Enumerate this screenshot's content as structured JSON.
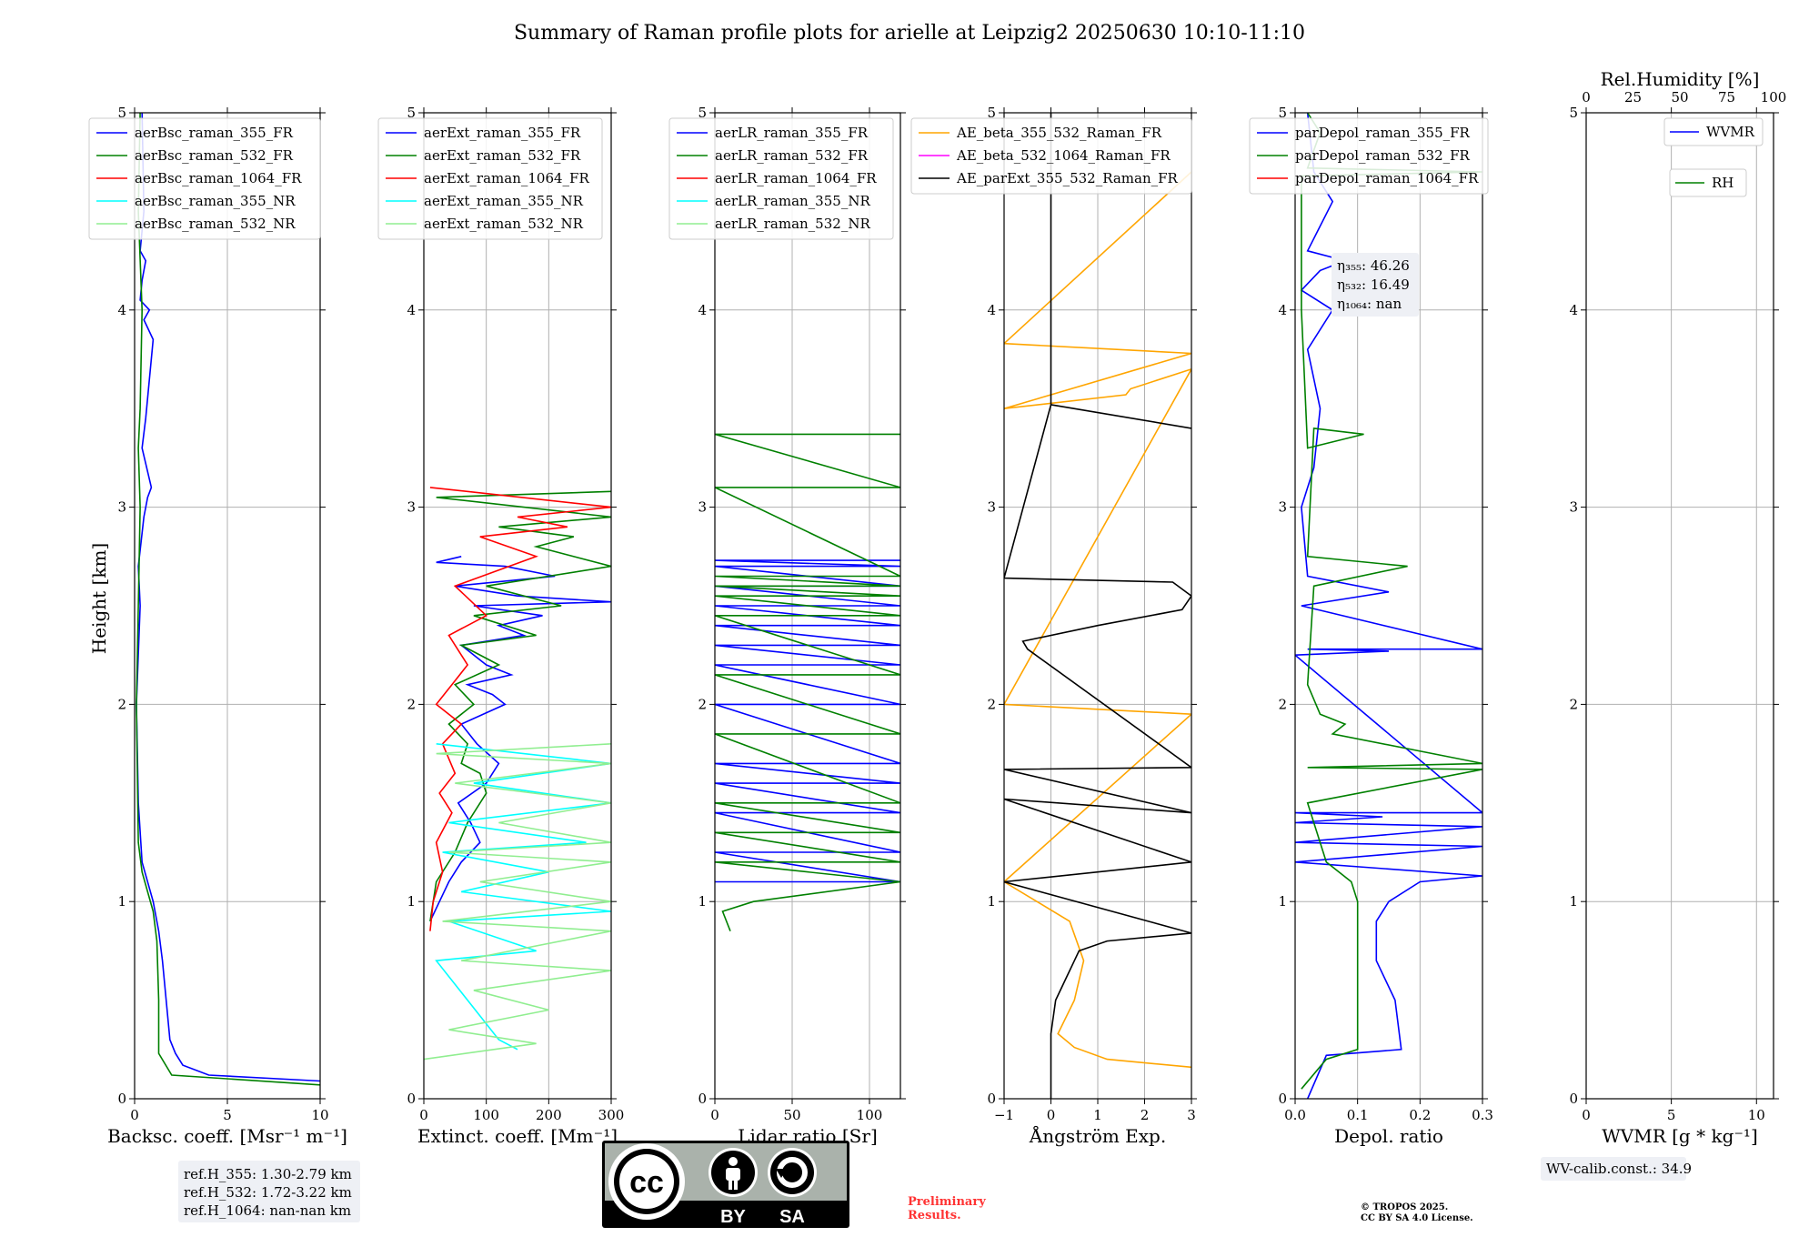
{
  "title": "Summary of Raman profile plots for arielle at Leipzig2 20250630 10:10-11:10",
  "chart_data": [
    {
      "type": "line",
      "xlabel": "Backsc. coeff. [Msr⁻¹ m⁻¹]",
      "ylabel": "Height [km]",
      "xlim": [
        0,
        10
      ],
      "xticks": [
        0,
        5,
        10
      ],
      "ylim": [
        0,
        5
      ],
      "yticks": [
        0,
        1,
        2,
        3,
        4,
        5
      ],
      "grid": true,
      "legend": "top-left",
      "series": [
        {
          "name": "aerBsc_raman_355_FR",
          "color": "#0000ff",
          "x": [
            10.0,
            4.0,
            2.6,
            2.2,
            1.9,
            1.7,
            1.5,
            1.3,
            1.0,
            0.7,
            0.4,
            0.2,
            0.1,
            0.3,
            0.2,
            0.5,
            0.7,
            0.9,
            0.4,
            0.6,
            1.0,
            0.5,
            0.8,
            0.3,
            0.4,
            0.6,
            0.3,
            0.5,
            0.4
          ],
          "y": [
            0.09,
            0.12,
            0.17,
            0.23,
            0.3,
            0.5,
            0.7,
            0.85,
            1.0,
            1.1,
            1.2,
            1.5,
            2.0,
            2.5,
            2.7,
            2.95,
            3.05,
            3.1,
            3.3,
            3.45,
            3.85,
            3.95,
            4.0,
            4.05,
            4.15,
            4.25,
            4.3,
            4.5,
            5.0
          ]
        },
        {
          "name": "aerBsc_raman_532_FR",
          "color": "#008000",
          "x": [
            10.0,
            2.0,
            1.3,
            1.3,
            1.2,
            1.0,
            0.7,
            0.4,
            0.2,
            0.1,
            0.2,
            0.3,
            0.2,
            0.3,
            0.4,
            0.2,
            0.3
          ],
          "y": [
            0.07,
            0.12,
            0.23,
            0.5,
            0.8,
            0.95,
            1.05,
            1.15,
            1.3,
            2.0,
            2.5,
            3.0,
            3.3,
            3.5,
            4.0,
            4.5,
            5.0
          ]
        },
        {
          "name": "aerBsc_raman_1064_FR",
          "color": "#ff0000",
          "x": [],
          "y": []
        },
        {
          "name": "aerBsc_raman_355_NR",
          "color": "#00ffff",
          "x": [],
          "y": []
        },
        {
          "name": "aerBsc_raman_532_NR",
          "color": "#90ee90",
          "x": [],
          "y": []
        }
      ]
    },
    {
      "type": "line",
      "xlabel": "Extinct. coeff. [Mm⁻¹]",
      "xlim": [
        0,
        300
      ],
      "xticks": [
        0,
        100,
        200,
        300
      ],
      "ylim": [
        0,
        5
      ],
      "yticks": [
        0,
        1,
        2,
        3,
        4,
        5
      ],
      "grid": true,
      "legend": "top-left",
      "series": [
        {
          "name": "aerExt_raman_355_FR",
          "color": "#0000ff",
          "x": [
            10,
            25,
            40,
            60,
            90,
            75,
            55,
            100,
            120,
            85,
            60,
            130,
            110,
            70,
            140,
            100,
            60,
            160,
            120,
            190,
            80,
            300,
            150,
            50,
            210,
            130,
            20,
            60
          ],
          "y": [
            0.9,
            1.0,
            1.1,
            1.2,
            1.3,
            1.4,
            1.5,
            1.6,
            1.7,
            1.8,
            1.9,
            2.0,
            2.05,
            2.1,
            2.15,
            2.2,
            2.3,
            2.35,
            2.4,
            2.45,
            2.5,
            2.52,
            2.55,
            2.6,
            2.65,
            2.7,
            2.72,
            2.75
          ]
        },
        {
          "name": "aerExt_raman_532_FR",
          "color": "#008000",
          "x": [
            10,
            20,
            50,
            70,
            100,
            90,
            60,
            70,
            40,
            80,
            50,
            120,
            60,
            180,
            80,
            220,
            100,
            300,
            180,
            240,
            120,
            300,
            20,
            300
          ],
          "y": [
            0.9,
            1.1,
            1.25,
            1.4,
            1.55,
            1.65,
            1.7,
            1.8,
            1.9,
            2.0,
            2.1,
            2.2,
            2.3,
            2.35,
            2.45,
            2.5,
            2.6,
            2.7,
            2.8,
            2.85,
            2.9,
            2.95,
            3.05,
            3.08
          ]
        },
        {
          "name": "aerExt_raman_1064_FR",
          "color": "#ff0000",
          "x": [
            10,
            15,
            30,
            20,
            45,
            25,
            50,
            30,
            60,
            20,
            45,
            70,
            40,
            100,
            50,
            180,
            90,
            230,
            150,
            300,
            10
          ],
          "y": [
            0.85,
            1.0,
            1.15,
            1.3,
            1.45,
            1.55,
            1.65,
            1.8,
            1.9,
            2.0,
            2.1,
            2.2,
            2.35,
            2.45,
            2.6,
            2.75,
            2.85,
            2.9,
            2.95,
            3.0,
            3.1
          ]
        },
        {
          "name": "aerExt_raman_355_NR",
          "color": "#00ffff",
          "x": [
            150,
            120,
            70,
            20,
            180,
            40,
            300,
            60,
            200,
            30,
            260,
            40,
            300,
            80,
            300,
            20
          ],
          "y": [
            0.25,
            0.3,
            0.5,
            0.7,
            0.75,
            0.9,
            0.95,
            1.05,
            1.15,
            1.25,
            1.3,
            1.4,
            1.5,
            1.6,
            1.7,
            1.8
          ]
        },
        {
          "name": "aerExt_raman_532_NR",
          "color": "#90ee90",
          "x": [
            0,
            180,
            40,
            200,
            80,
            300,
            60,
            300,
            30,
            300,
            90,
            300,
            40,
            300,
            120,
            300,
            50,
            300,
            20,
            300
          ],
          "y": [
            0.2,
            0.28,
            0.35,
            0.45,
            0.55,
            0.65,
            0.7,
            0.85,
            0.9,
            1.0,
            1.1,
            1.2,
            1.25,
            1.3,
            1.4,
            1.5,
            1.6,
            1.7,
            1.75,
            1.8
          ]
        }
      ]
    },
    {
      "type": "line",
      "xlabel": "Lidar ratio [Sr]",
      "xlim": [
        0,
        120
      ],
      "xticks": [
        0,
        50,
        100
      ],
      "ylim": [
        0,
        5
      ],
      "yticks": [
        0,
        1,
        2,
        3,
        4,
        5
      ],
      "grid": true,
      "legend": "top-left",
      "series": [
        {
          "name": "aerLR_raman_355_FR",
          "color": "#0000ff",
          "x": [
            0,
            120,
            0,
            120,
            0,
            120,
            0,
            120,
            0,
            120,
            0,
            120,
            0,
            120,
            0,
            120,
            0,
            120,
            0,
            120,
            0,
            120,
            0,
            120,
            0,
            120
          ],
          "y": [
            1.1,
            1.1,
            1.25,
            1.25,
            1.45,
            1.45,
            1.6,
            1.6,
            1.7,
            1.7,
            2.0,
            2.0,
            2.2,
            2.2,
            2.3,
            2.3,
            2.4,
            2.4,
            2.5,
            2.5,
            2.6,
            2.6,
            2.7,
            2.7,
            2.73,
            2.73
          ]
        },
        {
          "name": "aerLR_raman_532_FR",
          "color": "#008000",
          "x": [
            10,
            5,
            25,
            120,
            0,
            120,
            0,
            120,
            0,
            120,
            0,
            120,
            0,
            120,
            0,
            120,
            0,
            120,
            0,
            120,
            0,
            120,
            0,
            120,
            0,
            120
          ],
          "y": [
            0.85,
            0.95,
            1.0,
            1.1,
            1.2,
            1.2,
            1.35,
            1.35,
            1.5,
            1.5,
            1.85,
            1.85,
            2.15,
            2.15,
            2.45,
            2.45,
            2.55,
            2.55,
            2.6,
            2.6,
            2.65,
            2.65,
            3.1,
            3.1,
            3.37,
            3.37
          ]
        },
        {
          "name": "aerLR_raman_1064_FR",
          "color": "#ff0000",
          "x": [],
          "y": []
        },
        {
          "name": "aerLR_raman_355_NR",
          "color": "#00ffff",
          "x": [],
          "y": []
        },
        {
          "name": "aerLR_raman_532_NR",
          "color": "#90ee90",
          "x": [],
          "y": []
        }
      ]
    },
    {
      "type": "line",
      "xlabel": "Ångström Exp.",
      "xlim": [
        -1,
        3
      ],
      "xticks": [
        -1,
        0,
        1,
        2,
        3
      ],
      "ylim": [
        0,
        5
      ],
      "yticks": [
        0,
        1,
        2,
        3,
        4,
        5
      ],
      "grid": true,
      "legend": "top-left",
      "series": [
        {
          "name": "AE_beta_355_532_Raman_FR",
          "color": "#ffa500",
          "x": [
            3,
            1.2,
            0.5,
            0.15,
            0.5,
            0.7,
            0.4,
            -1,
            3,
            -1,
            3,
            1.7,
            1.6,
            -1,
            3,
            -1,
            3
          ],
          "y": [
            0.16,
            0.2,
            0.26,
            0.33,
            0.5,
            0.7,
            0.9,
            1.1,
            1.95,
            2.0,
            3.7,
            3.6,
            3.57,
            3.5,
            3.78,
            3.83,
            4.7
          ]
        },
        {
          "name": "AE_beta_532_1064_Raman_FR",
          "color": "#ff00ff",
          "x": [],
          "y": []
        },
        {
          "name": "AE_parExt_355_532_Raman_FR",
          "color": "#000000",
          "x": [
            0,
            0,
            0.1,
            0.3,
            0.5,
            0.6,
            1.2,
            3,
            -1,
            3,
            -1,
            3,
            -1,
            3,
            -0.5,
            -0.6,
            1,
            2.8,
            3,
            2.6,
            -1,
            0,
            3,
            0,
            0
          ],
          "y": [
            0,
            0.33,
            0.5,
            0.6,
            0.7,
            0.75,
            0.8,
            0.84,
            1.1,
            1.2,
            1.52,
            1.45,
            1.67,
            1.68,
            2.28,
            2.32,
            2.4,
            2.48,
            2.55,
            2.62,
            2.64,
            3.52,
            3.4,
            3.52,
            5.0
          ]
        }
      ]
    },
    {
      "type": "line",
      "xlabel": "Depol. ratio",
      "xlim": [
        0,
        0.3
      ],
      "xticks": [
        0.0,
        0.1,
        0.2,
        0.3
      ],
      "xticklabels": [
        "0.0",
        "0.1",
        "0.2",
        "0.3"
      ],
      "ylim": [
        0,
        5
      ],
      "yticks": [
        0,
        1,
        2,
        3,
        4,
        5
      ],
      "grid": true,
      "legend": "top-left",
      "annotation": {
        "lines": [
          "η₃₅₅: 46.26",
          "η₅₃₂: 16.49",
          "η₁₀₆₄: nan"
        ]
      },
      "series": [
        {
          "name": "parDepol_raman_355_FR",
          "color": "#0000ff",
          "x": [
            0.02,
            0.05,
            0.17,
            0.16,
            0.13,
            0.13,
            0.15,
            0.2,
            0.3,
            0.0,
            0.3,
            0.0,
            0.3,
            0.0,
            0.14,
            0.0,
            0.3,
            0.0,
            0.15,
            0.02,
            0.3,
            0.01,
            0.15,
            0.02,
            0.01,
            0.03,
            0.04,
            0.02,
            0.06,
            0.01,
            0.04,
            0.08,
            0.02,
            0.06,
            0.03,
            0.02
          ],
          "y": [
            0.0,
            0.22,
            0.25,
            0.5,
            0.7,
            0.9,
            1.0,
            1.1,
            1.13,
            1.2,
            1.28,
            1.3,
            1.38,
            1.4,
            1.43,
            1.45,
            1.45,
            2.25,
            2.27,
            2.28,
            2.28,
            2.5,
            2.57,
            2.65,
            3.0,
            3.2,
            3.5,
            3.8,
            4.0,
            4.1,
            4.2,
            4.25,
            4.3,
            4.55,
            4.7,
            5.0
          ]
        },
        {
          "name": "parDepol_raman_532_FR",
          "color": "#008000",
          "x": [
            0.01,
            0.05,
            0.1,
            0.1,
            0.1,
            0.09,
            0.05,
            0.02,
            0.3,
            0.02,
            0.3,
            0.06,
            0.08,
            0.04,
            0.02,
            0.03,
            0.18,
            0.02,
            0.03,
            0.11,
            0.02,
            0.01,
            0.01,
            0.3,
            0.02,
            0.04,
            0.02
          ],
          "y": [
            0.05,
            0.2,
            0.25,
            0.8,
            1.0,
            1.1,
            1.2,
            1.5,
            1.67,
            1.68,
            1.7,
            1.85,
            1.9,
            1.95,
            2.1,
            2.6,
            2.7,
            2.75,
            3.4,
            3.37,
            3.3,
            4.0,
            4.68,
            4.7,
            4.72,
            4.9,
            5.0
          ]
        },
        {
          "name": "parDepol_raman_1064_FR",
          "color": "#ff0000",
          "x": [],
          "y": []
        }
      ]
    },
    {
      "type": "line",
      "xlabel": "WVMR [g * kg⁻¹]",
      "xlim": [
        0,
        11
      ],
      "xticks": [
        0,
        5,
        10
      ],
      "ylim": [
        0,
        5
      ],
      "yticks": [
        0,
        1,
        2,
        3,
        4,
        5
      ],
      "x2label": "Rel.Humidity [%]",
      "x2lim": [
        0,
        100
      ],
      "x2ticks": [
        0,
        25,
        50,
        75,
        100
      ],
      "grid": true,
      "legend": "top-right",
      "series": [
        {
          "name": "WVMR",
          "color": "#0000ff",
          "x": [],
          "y": []
        },
        {
          "name": "RH",
          "color": "#008000",
          "x": [],
          "y": []
        }
      ]
    }
  ],
  "annotations": {
    "ref_heights": [
      "ref.H_355: 1.30-2.79 km",
      "ref.H_532: 1.72-3.22 km",
      "ref.H_1064: nan-nan km"
    ],
    "wv_calib": "WV-calib.const.: 34.9",
    "preliminary": [
      "Preliminary",
      "Results."
    ],
    "copyright": [
      "© TROPOS 2025.",
      "CC BY SA 4.0 License."
    ],
    "license_badge": {
      "icon": "cc-by-sa-icon",
      "labels": [
        "BY",
        "SA"
      ],
      "cc_text": "cc"
    }
  }
}
